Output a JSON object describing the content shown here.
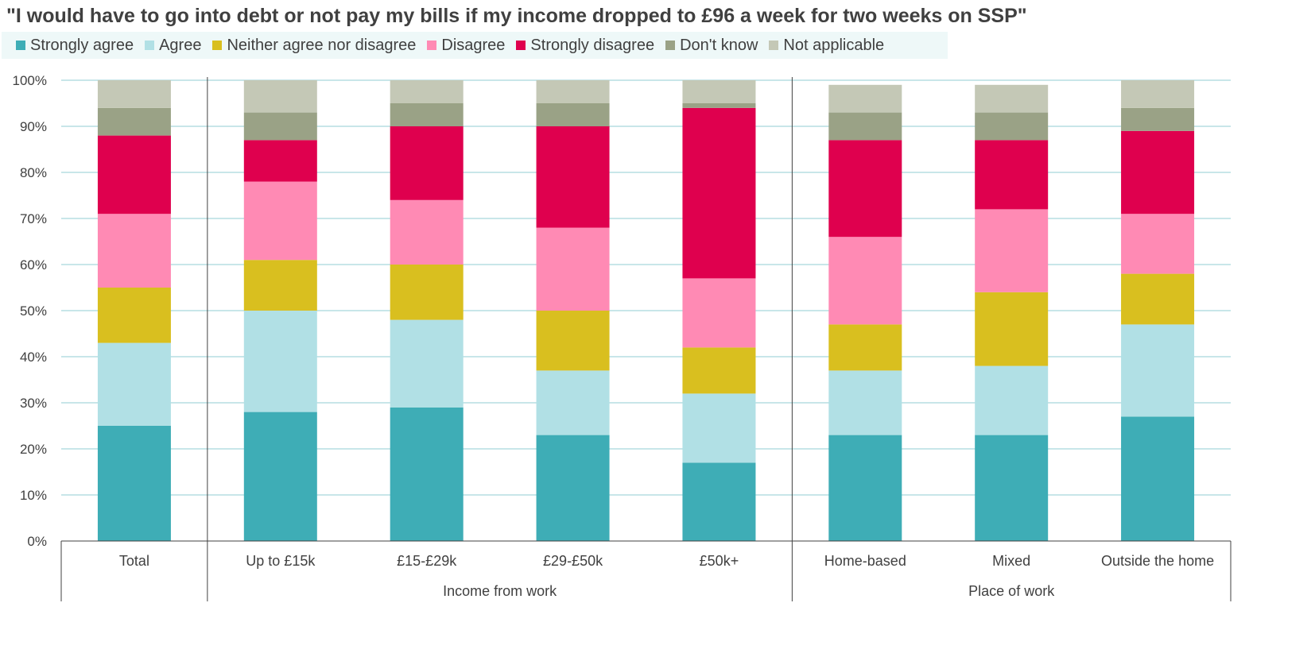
{
  "chart_data": {
    "type": "bar",
    "stacked": true,
    "title": "\"I would have to go into debt or not pay my bills if my income dropped to £96 a week for two weeks on SSP\"",
    "xlabel": "",
    "ylabel": "",
    "ylim": [
      0,
      100
    ],
    "y_tick_labels": [
      "0%",
      "10%",
      "20%",
      "30%",
      "40%",
      "50%",
      "60%",
      "70%",
      "80%",
      "90%",
      "100%"
    ],
    "grid": true,
    "legend_position": "top",
    "categories": [
      "Total",
      "Up to £15k",
      "£15-£29k",
      "£29-£50k",
      "£50k+",
      "Home-based",
      "Mixed",
      "Outside the home"
    ],
    "groups": [
      {
        "label": "",
        "categories": [
          "Total"
        ]
      },
      {
        "label": "Income from work",
        "categories": [
          "Up to £15k",
          "£15-£29k",
          "£29-£50k",
          "£50k+"
        ]
      },
      {
        "label": "Place of work",
        "categories": [
          "Home-based",
          "Mixed",
          "Outside the home"
        ]
      }
    ],
    "series": [
      {
        "name": "Strongly agree",
        "color": "#3eadb6",
        "values": [
          25,
          28,
          29,
          23,
          17,
          23,
          23,
          27
        ]
      },
      {
        "name": "Agree",
        "color": "#b1e0e5",
        "values": [
          18,
          22,
          19,
          14,
          15,
          14,
          15,
          20
        ]
      },
      {
        "name": "Neither agree nor disagree",
        "color": "#d9bf1f",
        "values": [
          12,
          11,
          12,
          13,
          10,
          10,
          16,
          11
        ]
      },
      {
        "name": "Disagree",
        "color": "#ff8ab4",
        "values": [
          16,
          17,
          14,
          18,
          15,
          19,
          18,
          13
        ]
      },
      {
        "name": "Strongly disagree",
        "color": "#df004e",
        "values": [
          17,
          9,
          16,
          22,
          37,
          21,
          15,
          18
        ]
      },
      {
        "name": "Don't know",
        "color": "#9aa286",
        "values": [
          6,
          6,
          5,
          5,
          1,
          6,
          6,
          5
        ]
      },
      {
        "name": "Not applicable",
        "color": "#c4c8b6",
        "values": [
          6,
          7,
          5,
          5,
          5,
          6,
          6,
          6
        ]
      }
    ]
  }
}
